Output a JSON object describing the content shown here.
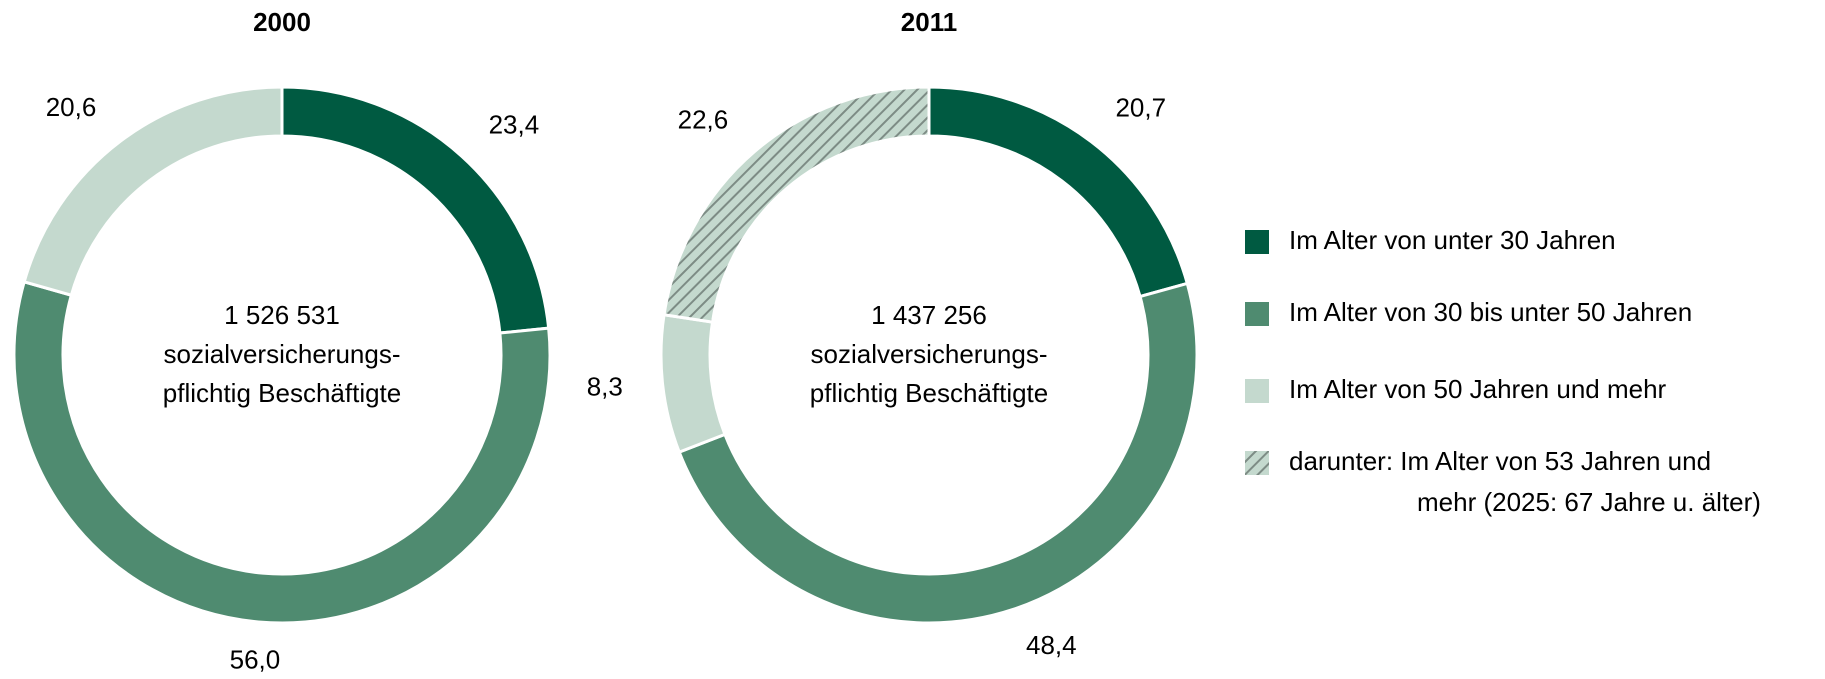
{
  "chart_data": [
    {
      "type": "donut",
      "title": "2000",
      "values": [
        23.4,
        56.0,
        20.6
      ],
      "value_labels": [
        "23,4",
        "56,0",
        "20,6"
      ],
      "colors": [
        "#005a41",
        "#4f8b70",
        "#c4d9ce"
      ],
      "hatched": [
        false,
        false,
        false
      ],
      "center_text": [
        "1 526 531",
        "sozialversicherungs-",
        "pflichtig Beschäftigte"
      ]
    },
    {
      "type": "donut",
      "title": "2011",
      "values": [
        20.7,
        48.4,
        8.3,
        22.6
      ],
      "value_labels": [
        "20,7",
        "48,4",
        "8,3",
        "22,6"
      ],
      "colors": [
        "#005a41",
        "#4f8b70",
        "#c4d9ce",
        "#c4d9ce"
      ],
      "hatched": [
        false,
        false,
        false,
        true
      ],
      "center_text": [
        "1 437 256",
        "sozialversicherungs-",
        "pflichtig Beschäftigte"
      ]
    }
  ],
  "legend": {
    "position": "right",
    "entries": [
      {
        "lines": [
          "Im Alter von unter 30 Jahren"
        ],
        "color": "#005a41",
        "hatched": false
      },
      {
        "lines": [
          "Im Alter von 30 bis unter 50 Jahren"
        ],
        "color": "#4f8b70",
        "hatched": false
      },
      {
        "lines": [
          "Im Alter von 50 Jahren und mehr"
        ],
        "color": "#c4d9ce",
        "hatched": false
      },
      {
        "lines": [
          "darunter: Im Alter von 53 Jahren und",
          "mehr (2025: 67 Jahre u. älter)"
        ],
        "color": "#c4d9ce",
        "hatched": true
      }
    ]
  }
}
